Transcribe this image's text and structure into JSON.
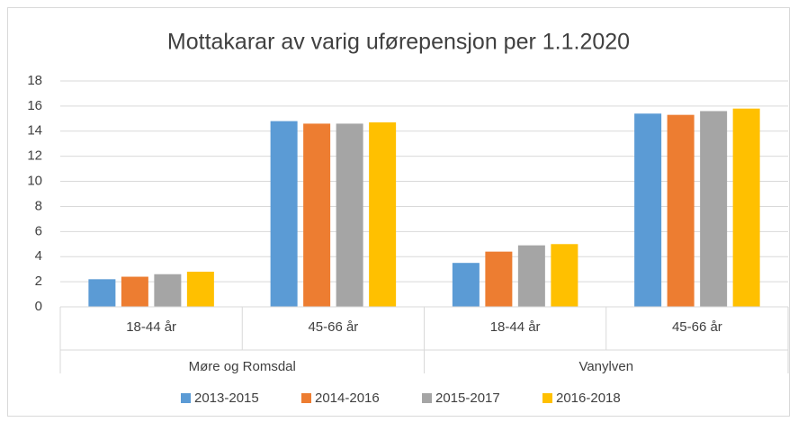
{
  "chart_data": {
    "type": "bar",
    "title": "Mottakarar av varig uførepensjon per 1.1.2020",
    "groups": [
      {
        "label": "Møre og Romsdal",
        "categories": [
          "18-44 år",
          "45-66 år"
        ]
      },
      {
        "label": "Vanylven",
        "categories": [
          "18-44 år",
          "45-66 år"
        ]
      }
    ],
    "series": [
      {
        "name": "2013-2015",
        "color": "#5b9bd5",
        "values": [
          2.2,
          14.8,
          3.5,
          15.4
        ]
      },
      {
        "name": "2014-2016",
        "color": "#ed7d31",
        "values": [
          2.4,
          14.6,
          4.4,
          15.3
        ]
      },
      {
        "name": "2015-2017",
        "color": "#a5a5a5",
        "values": [
          2.6,
          14.6,
          4.9,
          15.6
        ]
      },
      {
        "name": "2016-2018",
        "color": "#ffc000",
        "values": [
          2.8,
          14.7,
          5.0,
          15.8
        ]
      }
    ],
    "ylim": [
      0,
      18
    ],
    "yticks": [
      0,
      2,
      4,
      6,
      8,
      10,
      12,
      14,
      16,
      18
    ],
    "grid": true,
    "legend": "bottom"
  }
}
